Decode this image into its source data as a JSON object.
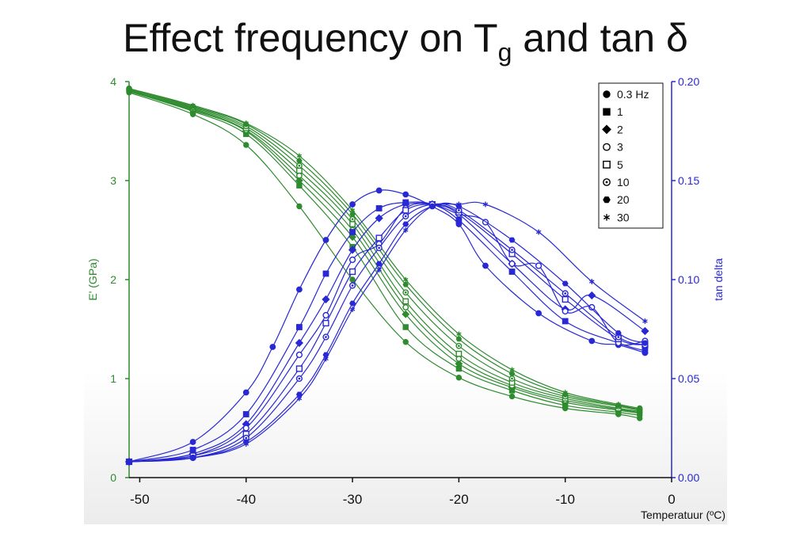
{
  "title": {
    "pre": "Effect frequency on T",
    "sub": "g",
    "post": " and tan δ"
  },
  "colors": {
    "green": "#2e8b2e",
    "blue": "#2828d4",
    "frame": "#000000"
  },
  "chart_data": {
    "type": "scatter",
    "xlabel": "Temperatuur (ºC)",
    "ylabel_left": "E' (GPa)",
    "ylabel_right": "tan delta",
    "xlim": [
      -51,
      0
    ],
    "ylim_left": [
      0,
      4
    ],
    "ylim_right": [
      0.0,
      0.2
    ],
    "x_ticks": [
      "-50",
      "-40",
      "-30",
      "-20",
      "-10",
      "0"
    ],
    "y_ticks_left": [
      "0",
      "1",
      "2",
      "3",
      "4"
    ],
    "y_ticks_right": [
      "0.00",
      "0.05",
      "0.10",
      "0.15",
      "0.20"
    ],
    "legend_position": "top-right",
    "legend": [
      {
        "label": "0.3 Hz",
        "marker": "filled-circle"
      },
      {
        "label": "1",
        "marker": "filled-square"
      },
      {
        "label": "2",
        "marker": "filled-diamond"
      },
      {
        "label": "3",
        "marker": "open-circle"
      },
      {
        "label": "5",
        "marker": "open-square"
      },
      {
        "label": "10",
        "marker": "open-star"
      },
      {
        "label": "20",
        "marker": "filled-hexagon"
      },
      {
        "label": "30",
        "marker": "asterisk"
      }
    ],
    "modulus_series": [
      {
        "name": "0.3 Hz",
        "x": [
          -51,
          -45,
          -40,
          -35,
          -30,
          -25,
          -20,
          -15,
          -10,
          -5,
          -3
        ],
        "y": [
          3.89,
          3.67,
          3.36,
          2.74,
          2.0,
          1.37,
          1.01,
          0.82,
          0.7,
          0.64,
          0.6
        ]
      },
      {
        "name": "1",
        "x": [
          -51,
          -45,
          -40,
          -35,
          -30,
          -25,
          -20,
          -15,
          -10,
          -5,
          -3
        ],
        "y": [
          3.9,
          3.7,
          3.47,
          2.95,
          2.33,
          1.52,
          1.1,
          0.88,
          0.73,
          0.66,
          0.63
        ]
      },
      {
        "name": "2",
        "x": [
          -51,
          -45,
          -40,
          -35,
          -30,
          -25,
          -20,
          -15,
          -10,
          -5,
          -3
        ],
        "y": [
          3.91,
          3.71,
          3.5,
          3.0,
          2.43,
          1.65,
          1.15,
          0.91,
          0.76,
          0.68,
          0.65
        ]
      },
      {
        "name": "3",
        "x": [
          -51,
          -45,
          -40,
          -35,
          -30,
          -25,
          -20,
          -15,
          -10,
          -5,
          -3
        ],
        "y": [
          3.91,
          3.72,
          3.51,
          3.05,
          2.5,
          1.72,
          1.2,
          0.93,
          0.78,
          0.69,
          0.66
        ]
      },
      {
        "name": "5",
        "x": [
          -51,
          -45,
          -40,
          -35,
          -30,
          -25,
          -20,
          -15,
          -10,
          -5,
          -3
        ],
        "y": [
          3.92,
          3.73,
          3.53,
          3.1,
          2.56,
          1.78,
          1.25,
          0.96,
          0.8,
          0.7,
          0.67
        ]
      },
      {
        "name": "10",
        "x": [
          -51,
          -45,
          -40,
          -35,
          -30,
          -25,
          -20,
          -15,
          -10,
          -5,
          -3
        ],
        "y": [
          3.92,
          3.74,
          3.55,
          3.15,
          2.61,
          1.87,
          1.33,
          1.0,
          0.82,
          0.72,
          0.68
        ]
      },
      {
        "name": "20",
        "x": [
          -51,
          -45,
          -40,
          -35,
          -30,
          -25,
          -20,
          -15,
          -10,
          -5,
          -3
        ],
        "y": [
          3.93,
          3.75,
          3.57,
          3.2,
          2.66,
          1.95,
          1.4,
          1.05,
          0.84,
          0.73,
          0.69
        ]
      },
      {
        "name": "30",
        "x": [
          -51,
          -45,
          -40,
          -35,
          -30,
          -25,
          -20,
          -15,
          -10,
          -5,
          -3
        ],
        "y": [
          3.93,
          3.76,
          3.58,
          3.25,
          2.7,
          2.0,
          1.45,
          1.09,
          0.86,
          0.74,
          0.7
        ]
      }
    ],
    "tan_delta_series": [
      {
        "name": "0.3 Hz",
        "x": [
          -51,
          -45,
          -40,
          -37.5,
          -35,
          -32.5,
          -30,
          -27.5,
          -25,
          -22.5,
          -20,
          -17.5,
          -12.5,
          -7.5,
          -5,
          -2.5
        ],
        "y": [
          0.008,
          0.018,
          0.043,
          0.066,
          0.095,
          0.12,
          0.138,
          0.145,
          0.143,
          0.137,
          0.128,
          0.107,
          0.083,
          0.069,
          0.067,
          0.063
        ]
      },
      {
        "name": "1",
        "x": [
          -51,
          -45,
          -40,
          -35,
          -32.5,
          -30,
          -27.5,
          -25,
          -22.5,
          -20,
          -15,
          -10,
          -5,
          -2.5
        ],
        "y": [
          0.008,
          0.014,
          0.032,
          0.076,
          0.103,
          0.124,
          0.136,
          0.139,
          0.138,
          0.13,
          0.104,
          0.079,
          0.068,
          0.064
        ]
      },
      {
        "name": "2",
        "x": [
          -51,
          -45,
          -40,
          -35,
          -32.5,
          -30,
          -27.5,
          -25,
          -22.5,
          -20,
          -15,
          -10,
          -7.5,
          -2.5
        ],
        "y": [
          0.008,
          0.012,
          0.027,
          0.068,
          0.09,
          0.115,
          0.131,
          0.138,
          0.138,
          0.133,
          0.108,
          0.085,
          0.092,
          0.074
        ]
      },
      {
        "name": "3",
        "x": [
          -51,
          -45,
          -40,
          -35,
          -32.5,
          -30,
          -27.5,
          -25,
          -22.5,
          -20,
          -17.5,
          -15,
          -12.5,
          -10,
          -7.5,
          -5,
          -2.5
        ],
        "y": [
          0.008,
          0.011,
          0.025,
          0.062,
          0.082,
          0.11,
          0.118,
          0.136,
          0.138,
          0.133,
          0.129,
          0.108,
          0.107,
          0.084,
          0.086,
          0.068,
          0.069
        ]
      },
      {
        "name": "5",
        "x": [
          -51,
          -45,
          -40,
          -35,
          -32.5,
          -30,
          -27.5,
          -25,
          -22.5,
          -20,
          -15,
          -10,
          -5,
          -2.5
        ],
        "y": [
          0.008,
          0.011,
          0.022,
          0.055,
          0.078,
          0.104,
          0.121,
          0.135,
          0.138,
          0.134,
          0.113,
          0.09,
          0.07,
          0.067
        ]
      },
      {
        "name": "10",
        "x": [
          -51,
          -45,
          -40,
          -35,
          -32.5,
          -30,
          -27.5,
          -25,
          -22.5,
          -20,
          -15,
          -10,
          -5,
          -2.5
        ],
        "y": [
          0.008,
          0.01,
          0.02,
          0.05,
          0.071,
          0.097,
          0.116,
          0.132,
          0.138,
          0.135,
          0.115,
          0.093,
          0.071,
          0.067
        ]
      },
      {
        "name": "20",
        "x": [
          -51,
          -45,
          -40,
          -35,
          -32.5,
          -30,
          -27.5,
          -25,
          -22.5,
          -20,
          -15,
          -10,
          -5,
          -2.5
        ],
        "y": [
          0.008,
          0.01,
          0.018,
          0.042,
          0.062,
          0.088,
          0.108,
          0.128,
          0.137,
          0.137,
          0.12,
          0.098,
          0.073,
          0.068
        ]
      },
      {
        "name": "30",
        "x": [
          -51,
          -45,
          -40,
          -35,
          -32.5,
          -30,
          -27.5,
          -25,
          -22.5,
          -20,
          -17.5,
          -12.5,
          -7.5,
          -2.5
        ],
        "y": [
          0.008,
          0.01,
          0.017,
          0.04,
          0.06,
          0.085,
          0.105,
          0.125,
          0.137,
          0.138,
          0.138,
          0.124,
          0.099,
          0.079
        ]
      }
    ]
  }
}
